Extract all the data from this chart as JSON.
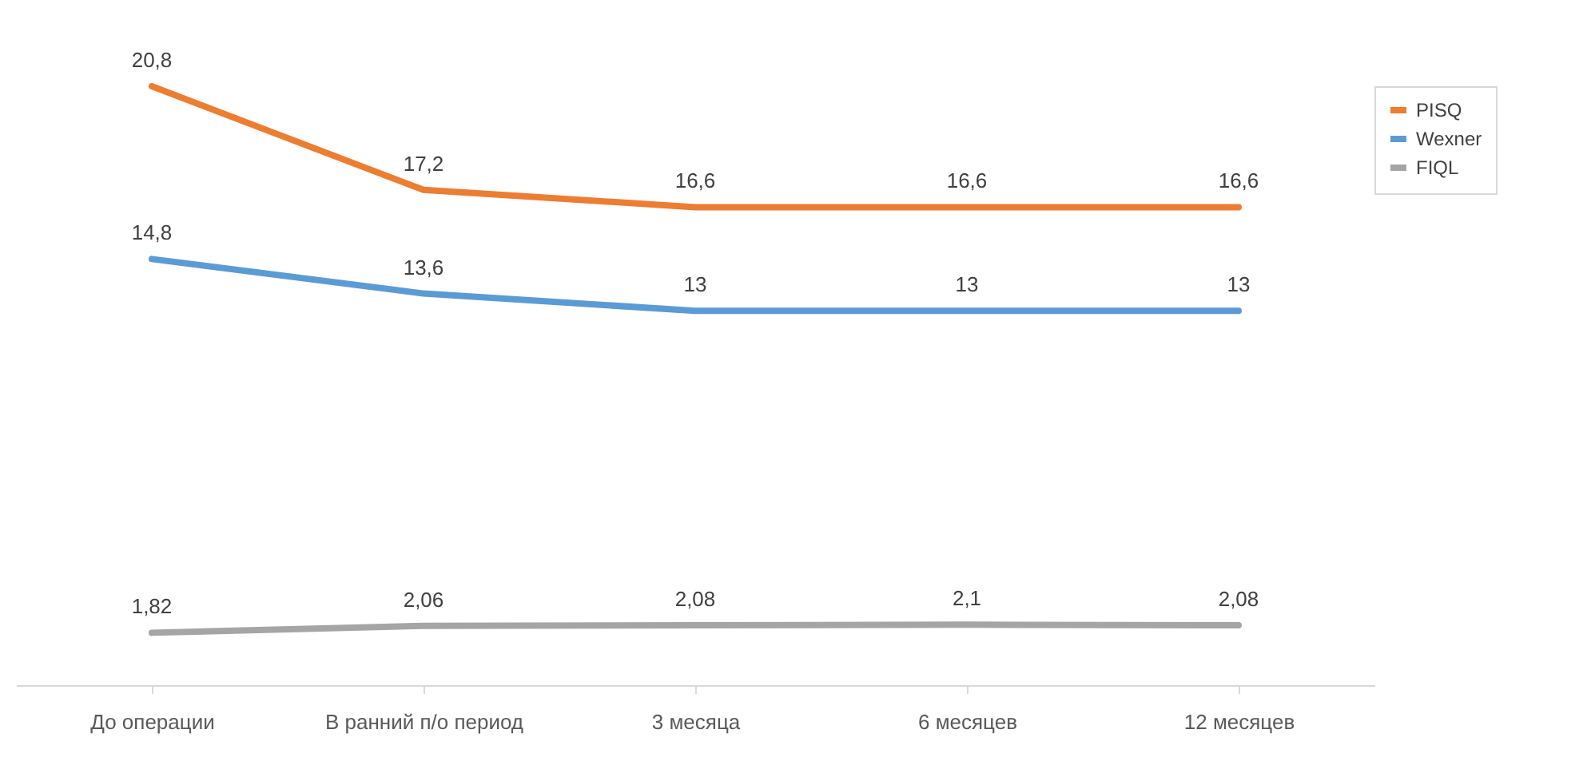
{
  "chart_data": {
    "type": "line",
    "categories": [
      "До операции",
      "В ранний п/о период",
      "3 месяца",
      "6 месяцев",
      "12 месяцев"
    ],
    "series": [
      {
        "name": "PISQ",
        "color": "#ed7d31",
        "values": [
          20.8,
          17.2,
          16.6,
          16.6,
          16.6
        ],
        "value_labels": [
          "20,8",
          "17,2",
          "16,6",
          "16,6",
          "16,6"
        ]
      },
      {
        "name": "Wexner",
        "color": "#5b9bd5",
        "values": [
          14.8,
          13.6,
          13,
          13,
          13
        ],
        "value_labels": [
          "14,8",
          "13,6",
          "13",
          "13",
          "13"
        ]
      },
      {
        "name": "FIQL",
        "color": "#a5a5a5",
        "values": [
          1.82,
          2.06,
          2.08,
          2.1,
          2.08
        ],
        "value_labels": [
          "1,82",
          "2,06",
          "2,08",
          "2,1",
          "2,08"
        ]
      }
    ],
    "legend": "right",
    "marker": "none",
    "line_style": "solid"
  }
}
